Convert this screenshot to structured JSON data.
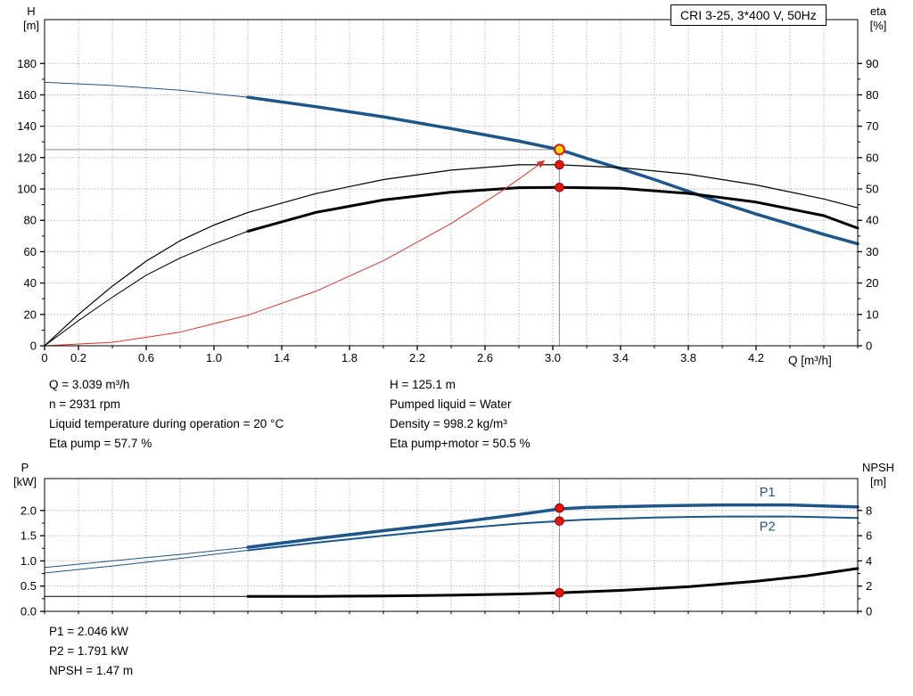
{
  "title_box": "CRI 3-25, 3*400 V, 50Hz",
  "axis_corner_labels": {
    "top_left": "H\n[m]",
    "top_right": "eta\n[%]",
    "bottom_left": "P\n[kW]",
    "bottom_right": "NPSH\n[m]",
    "x_axis": "Q [m³/h]"
  },
  "info": {
    "top_left": [
      "Q = 3.039 m³/h",
      "n = 2931 rpm",
      "Liquid temperature during operation = 20 °C",
      "Eta pump = 57.7 %"
    ],
    "top_right": [
      "H = 125.1 m",
      "Pumped liquid = Water",
      "Density = 998.2 kg/m³",
      "Eta pump+motor = 50.5 %"
    ],
    "bottom": [
      "P1 = 2.046 kW",
      "P2 = 1.791 kW",
      "NPSH = 1.47 m"
    ]
  },
  "colors": {
    "curve_blue": "#1d5689",
    "curve_black": "#000000",
    "curve_red": "#d8372a",
    "grid": "#a8a8a8",
    "axis": "#000000",
    "connector": "#8a8a8a",
    "dot_red": "#e81309",
    "dot_red_edge": "#8b0000",
    "dot_yellow": "#ffdf00"
  },
  "chart_data": [
    {
      "type": "line",
      "title": "CRI 3-25, 3*400 V, 50Hz",
      "xlabel": "Q [m³/h]",
      "ylabel_left": "H [m]",
      "ylabel_right": "eta [%]",
      "xlim": [
        0,
        4.8
      ],
      "x_minor_step": 0.2,
      "ylim_left": [
        0,
        208
      ],
      "ylim_right": [
        0,
        104
      ],
      "grid": true,
      "x_ticks": [
        {
          "v": 0,
          "label": "0"
        },
        {
          "v": 0.2,
          "label": "0.2"
        },
        {
          "v": 0.6,
          "label": "0.6"
        },
        {
          "v": 1,
          "label": "1.0"
        },
        {
          "v": 1.4,
          "label": "1.4"
        },
        {
          "v": 1.8,
          "label": "1.8"
        },
        {
          "v": 2.2,
          "label": "2.2"
        },
        {
          "v": 2.6,
          "label": "2.6"
        },
        {
          "v": 3,
          "label": "3.0"
        },
        {
          "v": 3.4,
          "label": "3.4"
        },
        {
          "v": 3.8,
          "label": "3.8"
        },
        {
          "v": 4.2,
          "label": "4.2"
        }
      ],
      "y_left_ticks": {
        "values": [
          0,
          20,
          40,
          60,
          80,
          100,
          120,
          140,
          160,
          180
        ],
        "labels": [
          "0",
          "20",
          "40",
          "60",
          "80",
          "100",
          "120",
          "140",
          "160",
          "180"
        ]
      },
      "y_right_ticks": {
        "values": [
          0,
          10,
          20,
          30,
          40,
          50,
          60,
          70,
          80,
          90
        ],
        "labels": [
          "0",
          "10",
          "20",
          "30",
          "40",
          "50",
          "60",
          "70",
          "80",
          "90"
        ]
      },
      "series": [
        {
          "name": "hq-thin",
          "axis": "left",
          "color": "blue",
          "width": 1,
          "points": [
            [
              0,
              168
            ],
            [
              0.4,
              166
            ],
            [
              0.8,
              163
            ],
            [
              1.2,
              158.5
            ]
          ]
        },
        {
          "name": "hq",
          "axis": "left",
          "color": "blue",
          "width": 3.5,
          "points": [
            [
              1.2,
              158.5
            ],
            [
              1.6,
              152.5
            ],
            [
              2.0,
              146
            ],
            [
              2.4,
              138.5
            ],
            [
              2.8,
              130.5
            ],
            [
              3.039,
              125.1
            ],
            [
              3.2,
              119.5
            ],
            [
              3.4,
              113
            ],
            [
              3.6,
              106
            ],
            [
              3.8,
              98.5
            ],
            [
              4.0,
              91
            ],
            [
              4.2,
              84
            ],
            [
              4.4,
              77.5
            ],
            [
              4.6,
              71
            ],
            [
              4.8,
              65
            ]
          ]
        },
        {
          "name": "eta-pump",
          "axis": "right",
          "color": "black",
          "width": 1.2,
          "points": [
            [
              0,
              0
            ],
            [
              0.2,
              10
            ],
            [
              0.4,
              19
            ],
            [
              0.6,
              27
            ],
            [
              0.8,
              33.5
            ],
            [
              1.0,
              38.5
            ],
            [
              1.2,
              42.5
            ],
            [
              1.6,
              48.5
            ],
            [
              2.0,
              53
            ],
            [
              2.4,
              56
            ],
            [
              2.8,
              57.7
            ],
            [
              3.039,
              57.7
            ],
            [
              3.4,
              56.8
            ],
            [
              3.8,
              54.7
            ],
            [
              4.2,
              51.3
            ],
            [
              4.6,
              46.8
            ],
            [
              4.8,
              44
            ]
          ]
        },
        {
          "name": "eta-pump-motor-thin",
          "axis": "right",
          "color": "black",
          "width": 1,
          "points": [
            [
              0,
              0
            ],
            [
              0.2,
              8
            ],
            [
              0.4,
              15.5
            ],
            [
              0.6,
              22.5
            ],
            [
              0.8,
              28
            ],
            [
              1.0,
              32.5
            ],
            [
              1.2,
              36.5
            ]
          ]
        },
        {
          "name": "eta-pump-motor",
          "axis": "right",
          "color": "black",
          "width": 3,
          "points": [
            [
              1.2,
              36.5
            ],
            [
              1.6,
              42.5
            ],
            [
              2.0,
              46.5
            ],
            [
              2.4,
              49
            ],
            [
              2.8,
              50.4
            ],
            [
              3.039,
              50.5
            ],
            [
              3.4,
              50.2
            ],
            [
              3.8,
              48.6
            ],
            [
              4.2,
              45.8
            ],
            [
              4.6,
              41.5
            ],
            [
              4.8,
              37.5
            ]
          ]
        },
        {
          "name": "system-curve",
          "axis": "left",
          "color": "red",
          "width": 1,
          "arrow": true,
          "points": [
            [
              0,
              0
            ],
            [
              0.4,
              2.2
            ],
            [
              0.8,
              8.7
            ],
            [
              1.2,
              19.5
            ],
            [
              1.6,
              34.7
            ],
            [
              2.0,
              54.2
            ],
            [
              2.4,
              78.0
            ],
            [
              2.7,
              98.7
            ],
            [
              2.95,
              117.9
            ]
          ]
        }
      ],
      "markers": [
        {
          "x": 3.039,
          "y": 125.1,
          "axis": "left",
          "style": "duty"
        },
        {
          "x": 3.039,
          "y": 57.7,
          "axis": "right",
          "style": "red"
        },
        {
          "x": 3.039,
          "y": 50.5,
          "axis": "right",
          "style": "red"
        }
      ],
      "connectors": {
        "v_x": 3.039,
        "h_y_left": 125.1
      },
      "duty_point": {
        "Q_m3h": 3.039,
        "H_m": 125.1,
        "eta_pump_pct": 57.7,
        "eta_pump_motor_pct": 50.5,
        "n_rpm": 2931
      }
    },
    {
      "type": "line",
      "title": "",
      "xlabel": "Q [m³/h]",
      "ylabel_left": "P [kW]",
      "ylabel_right": "NPSH [m]",
      "xlim": [
        0,
        4.8
      ],
      "x_minor_step": 0.2,
      "ylim_left": [
        0,
        2.633
      ],
      "ylim_right": [
        0,
        10.53
      ],
      "grid": true,
      "x_ticks": [],
      "y_left_ticks": {
        "values": [
          0,
          0.5,
          1,
          1.5,
          2
        ],
        "labels": [
          "0.0",
          "0.5",
          "1.0",
          "1.5",
          "2.0"
        ]
      },
      "y_right_ticks": {
        "values": [
          0,
          2,
          4,
          6,
          8
        ],
        "labels": [
          "0",
          "2",
          "4",
          "6",
          "8"
        ]
      },
      "series": [
        {
          "name": "p1-thin",
          "axis": "left",
          "color": "blue",
          "width": 1,
          "points": [
            [
              0,
              0.87
            ],
            [
              0.4,
              1.0
            ],
            [
              0.8,
              1.13
            ],
            [
              1.2,
              1.27
            ]
          ]
        },
        {
          "name": "p1",
          "axis": "left",
          "color": "blue",
          "width": 3.5,
          "points": [
            [
              1.2,
              1.27
            ],
            [
              1.6,
              1.44
            ],
            [
              2.0,
              1.6
            ],
            [
              2.4,
              1.75
            ],
            [
              2.8,
              1.92
            ],
            [
              3.039,
              2.03
            ],
            [
              3.2,
              2.06
            ],
            [
              3.6,
              2.09
            ],
            [
              4.0,
              2.11
            ],
            [
              4.4,
              2.11
            ],
            [
              4.8,
              2.07
            ]
          ]
        },
        {
          "name": "p2-thin",
          "axis": "left",
          "color": "blue",
          "width": 1,
          "points": [
            [
              0,
              0.76
            ],
            [
              0.4,
              0.9
            ],
            [
              0.8,
              1.05
            ],
            [
              1.2,
              1.21
            ]
          ]
        },
        {
          "name": "p2",
          "axis": "left",
          "color": "blue",
          "width": 2,
          "points": [
            [
              1.2,
              1.21
            ],
            [
              1.6,
              1.36
            ],
            [
              2.0,
              1.5
            ],
            [
              2.4,
              1.63
            ],
            [
              2.8,
              1.74
            ],
            [
              3.039,
              1.79
            ],
            [
              3.2,
              1.82
            ],
            [
              3.6,
              1.86
            ],
            [
              4.0,
              1.88
            ],
            [
              4.4,
              1.88
            ],
            [
              4.8,
              1.85
            ]
          ]
        },
        {
          "name": "npsh-thin",
          "axis": "right",
          "color": "black",
          "width": 1,
          "points": [
            [
              0,
              1.18
            ],
            [
              0.6,
              1.18
            ],
            [
              1.2,
              1.18
            ]
          ]
        },
        {
          "name": "npsh",
          "axis": "right",
          "color": "black",
          "width": 3,
          "points": [
            [
              1.2,
              1.18
            ],
            [
              1.6,
              1.19
            ],
            [
              2.0,
              1.22
            ],
            [
              2.4,
              1.28
            ],
            [
              2.8,
              1.38
            ],
            [
              3.039,
              1.47
            ],
            [
              3.4,
              1.66
            ],
            [
              3.8,
              1.95
            ],
            [
              4.2,
              2.38
            ],
            [
              4.5,
              2.82
            ],
            [
              4.8,
              3.4
            ]
          ]
        }
      ],
      "markers": [
        {
          "x": 3.039,
          "y": 2.046,
          "axis": "left",
          "style": "red"
        },
        {
          "x": 3.039,
          "y": 1.791,
          "axis": "left",
          "style": "red"
        },
        {
          "x": 3.039,
          "y": 1.47,
          "axis": "right",
          "style": "red"
        }
      ],
      "curve_labels": [
        {
          "text": "P1",
          "x": 4.22,
          "y": 2.28,
          "axis": "left"
        },
        {
          "text": "P2",
          "x": 4.22,
          "y": 1.6,
          "axis": "left"
        }
      ],
      "connectors": {
        "v_x": 3.039
      },
      "duty_point": {
        "Q_m3h": 3.039,
        "P1_kW": 2.046,
        "P2_kW": 1.791,
        "NPSH_m": 1.47
      }
    }
  ]
}
